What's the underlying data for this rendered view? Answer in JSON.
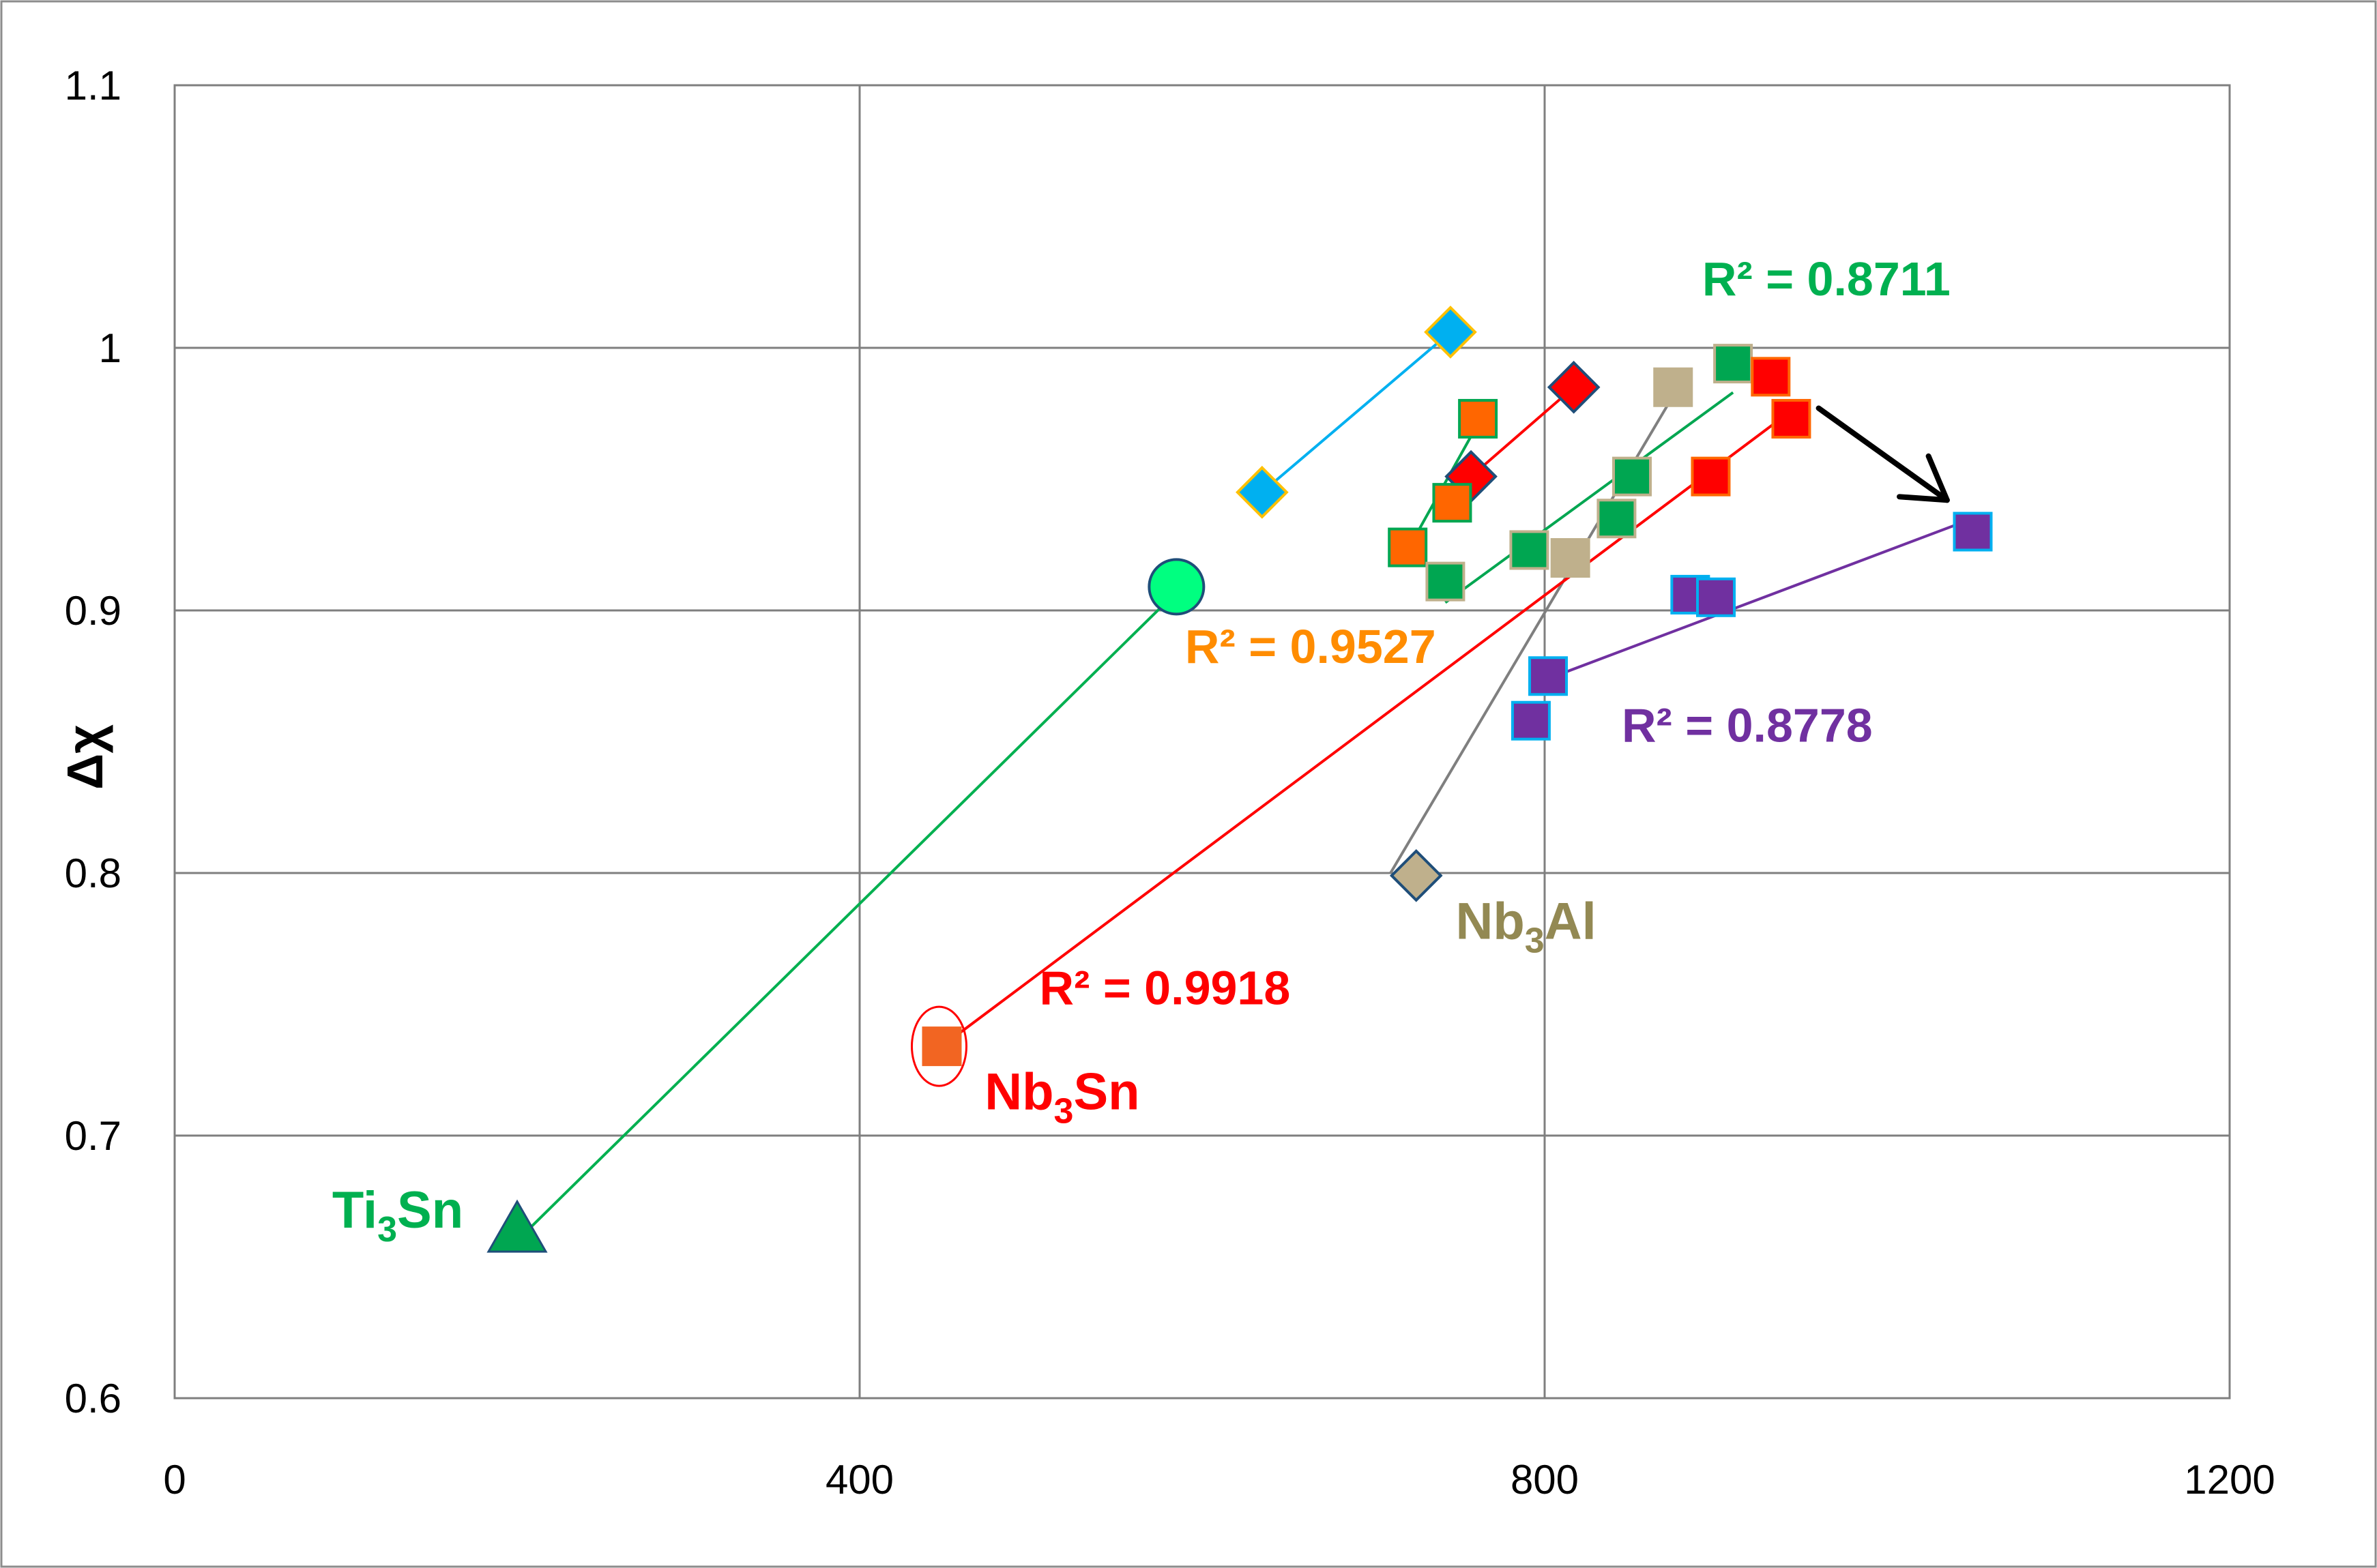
{
  "chart_data": {
    "type": "scatter",
    "title": "",
    "xlabel": "",
    "ylabel": "Δχ",
    "xlim": [
      0,
      1200
    ],
    "ylim": [
      0.6,
      1.1
    ],
    "xticks": [
      0,
      400,
      800,
      1200
    ],
    "yticks": [
      0.6,
      0.7,
      0.8,
      0.9,
      1,
      1.1
    ],
    "grid": true,
    "colors": {
      "blue": "#00B0F0",
      "orange": "#FF6600",
      "red": "#FF0000",
      "green": "#00A651",
      "tan": "#BFB08C",
      "purple": "#7030A0",
      "lightgreen": "#00FF80",
      "nb3sn": "#F26522",
      "darkblue": "#1F4E79",
      "gold": "#FFC000",
      "gray": "#7F7F7F",
      "black": "#000000",
      "annoGreen": "#00B050",
      "annoOrange": "#FF8C00",
      "annoPurple": "#7030A0",
      "labelTan": "#938953"
    },
    "series": [
      {
        "name": "blue diamonds",
        "marker": "diamond",
        "fill": "blue",
        "edge": "gold",
        "points": [
          [
            635,
            0.945
          ],
          [
            745,
            1.006
          ]
        ],
        "trend": [
          [
            635,
            0.945
          ],
          [
            745,
            1.006
          ]
        ],
        "trendColor": "blue"
      },
      {
        "name": "red diamonds",
        "marker": "diamond",
        "fill": "red",
        "edge": "darkblue",
        "points": [
          [
            757,
            0.951
          ],
          [
            817,
            0.985
          ]
        ],
        "trend": [
          [
            757,
            0.951
          ],
          [
            817,
            0.985
          ]
        ],
        "trendColor": "red"
      },
      {
        "name": "orange squares",
        "marker": "square",
        "fill": "orange",
        "edge": "green",
        "points": [
          [
            720,
            0.924
          ],
          [
            746,
            0.941
          ],
          [
            761,
            0.973
          ]
        ],
        "trend": [
          [
            720,
            0.923
          ],
          [
            761,
            0.971
          ]
        ],
        "trendColor": "green",
        "r2": "R² = 0.9527",
        "r2Color": "annoOrange"
      },
      {
        "name": "green squares",
        "marker": "square",
        "fill": "green",
        "edge": "tan",
        "points": [
          [
            742,
            0.911
          ],
          [
            791,
            0.923
          ],
          [
            842,
            0.935
          ],
          [
            851,
            0.951
          ],
          [
            910,
            0.994
          ]
        ],
        "trend": [
          [
            742,
            0.903
          ],
          [
            910,
            0.983
          ]
        ],
        "trendColor": "green",
        "r2": "R² = 0.8711",
        "r2Color": "annoGreen"
      },
      {
        "name": "tan squares",
        "marker": "square",
        "fill": "tan",
        "edge": "tan",
        "points": [
          [
            815,
            0.92
          ],
          [
            875,
            0.985
          ]
        ],
        "trend": [
          [
            710,
            0.8
          ],
          [
            878,
            0.985
          ]
        ],
        "trendColor": "gray"
      },
      {
        "name": "tan diamond (Nb3Al)",
        "marker": "diamond",
        "fill": "tan",
        "edge": "darkblue",
        "points": [
          [
            725,
            0.799
          ]
        ]
      },
      {
        "name": "red squares",
        "marker": "square",
        "fill": "red",
        "edge": "orange",
        "points": [
          [
            897,
            0.951
          ],
          [
            932,
            0.989
          ],
          [
            944,
            0.973
          ]
        ],
        "trend": [
          [
            448,
            0.734
          ],
          [
            944,
            0.976
          ]
        ],
        "trendColor": "red",
        "r2": "R² = 0.9918",
        "r2Color": "red"
      },
      {
        "name": "Nb3Sn",
        "marker": "square",
        "fill": "nb3sn",
        "edge": "nb3sn",
        "points": [
          [
            448,
            0.734
          ]
        ],
        "ring": true
      },
      {
        "name": "purple squares",
        "marker": "square",
        "fill": "purple",
        "edge": "blue",
        "points": [
          [
            792,
            0.858
          ],
          [
            802,
            0.875
          ],
          [
            885,
            0.906
          ],
          [
            900,
            0.905
          ],
          [
            1050,
            0.93
          ]
        ],
        "trend": [
          [
            802,
            0.874
          ],
          [
            1050,
            0.935
          ]
        ],
        "trendColor": "purple",
        "r2": "R² = 0.8778",
        "r2Color": "annoPurple"
      },
      {
        "name": "Ti3Sn triangle",
        "marker": "triangle",
        "fill": "green",
        "edge": "darkblue",
        "points": [
          [
            200,
            0.664
          ]
        ],
        "trend": [
          [
            200,
            0.66
          ],
          [
            585,
            0.907
          ]
        ],
        "trendColor": "annoGreen"
      },
      {
        "name": "green circle",
        "marker": "circle",
        "fill": "lightgreen",
        "edge": "darkblue",
        "points": [
          [
            585,
            0.909
          ]
        ]
      }
    ],
    "annotations": [
      {
        "key": "r2_green",
        "text": "R² = 0.8711",
        "color": "annoGreen",
        "x": 892,
        "y": 1.02,
        "anchor": "start"
      },
      {
        "key": "r2_orange",
        "text": "R² = 0.9527",
        "color": "annoOrange",
        "x": 590,
        "y": 0.88,
        "anchor": "start"
      },
      {
        "key": "r2_purple",
        "text": "R² = 0.8778",
        "color": "annoPurple",
        "x": 845,
        "y": 0.85,
        "anchor": "start"
      },
      {
        "key": "r2_red",
        "text": "R² = 0.9918",
        "color": "red",
        "x": 505,
        "y": 0.75,
        "anchor": "start"
      }
    ],
    "labels": [
      {
        "key": "ti3sn",
        "base": "Ti",
        "sub": "3",
        "rest": "Sn",
        "color": "annoGreen",
        "x": 92,
        "y": 0.665
      },
      {
        "key": "nb3sn",
        "base": "Nb",
        "sub": "3",
        "rest": "Sn",
        "color": "red",
        "x": 473,
        "y": 0.71
      },
      {
        "key": "nb3al",
        "base": "Nb",
        "sub": "3",
        "rest": "Al",
        "color": "labelTan",
        "x": 748,
        "y": 0.775
      }
    ],
    "arrow": {
      "from": [
        960,
        0.977
      ],
      "to": [
        1035,
        0.942
      ],
      "color": "black"
    }
  }
}
